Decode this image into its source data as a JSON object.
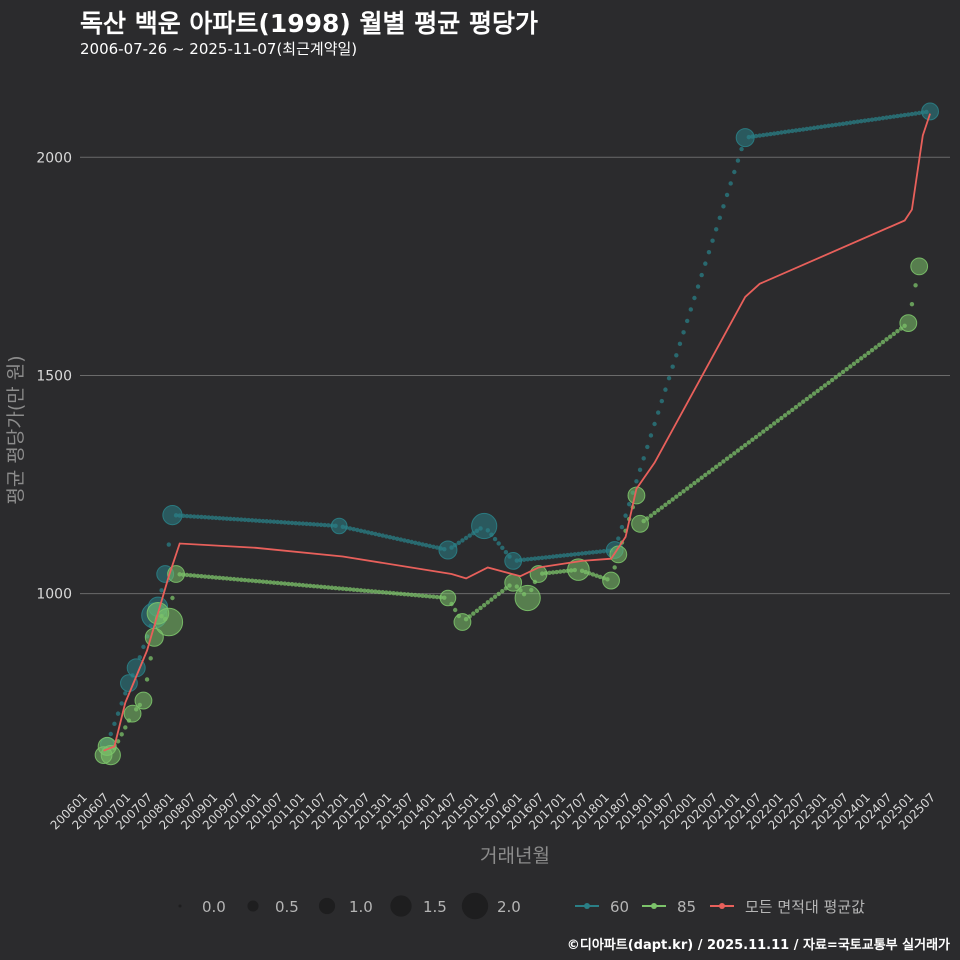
{
  "header": {
    "title": "독산 백운 아파트(1998) 월별 평균 평당가",
    "subtitle": "2006-07-26 ~ 2025-11-07(최근계약일)"
  },
  "footer": {
    "credit": "©디아파트(dapt.kr) / 2025.11.11 / 자료=국토교통부 실거래가"
  },
  "colors": {
    "background": "#2b2b2d",
    "s60": "#2a7f86",
    "s85": "#7cc36a",
    "avg": "#e8605b",
    "grid": "#6b6b6b"
  },
  "chart_data": {
    "type": "scatter",
    "title": "독산 백운 아파트(1998) 월별 평균 평당가",
    "xlabel": "거래년월",
    "ylabel": "평균 평당가(만 원)",
    "ylim": [
      550,
      2200
    ],
    "yticks": [
      1000,
      1500,
      2000
    ],
    "xlim": [
      "2006-01",
      "2025-12"
    ],
    "xticks": [
      "200601",
      "200607",
      "200701",
      "200707",
      "200801",
      "200807",
      "200901",
      "200907",
      "201001",
      "201007",
      "201101",
      "201107",
      "201201",
      "201207",
      "201301",
      "201307",
      "201401",
      "201407",
      "201501",
      "201507",
      "201601",
      "201607",
      "201701",
      "201707",
      "201801",
      "201807",
      "201901",
      "201907",
      "202001",
      "202007",
      "202101",
      "202107",
      "202201",
      "202207",
      "202301",
      "202307",
      "202401",
      "202407",
      "202501",
      "202507"
    ],
    "series": [
      {
        "name": "60",
        "points": [
          {
            "x": "2006-08",
            "y": 655,
            "size": 0.6
          },
          {
            "x": "2007-02",
            "y": 795,
            "size": 0.9
          },
          {
            "x": "2007-04",
            "y": 830,
            "size": 1.0
          },
          {
            "x": "2007-09",
            "y": 950,
            "size": 1.6
          },
          {
            "x": "2007-10",
            "y": 970,
            "size": 1.1
          },
          {
            "x": "2007-12",
            "y": 1045,
            "size": 0.9
          },
          {
            "x": "2008-02",
            "y": 1180,
            "size": 1.1
          },
          {
            "x": "2011-12",
            "y": 1155,
            "size": 0.8
          },
          {
            "x": "2014-06",
            "y": 1100,
            "size": 1.0
          },
          {
            "x": "2015-04",
            "y": 1155,
            "size": 1.6
          },
          {
            "x": "2015-12",
            "y": 1075,
            "size": 0.9
          },
          {
            "x": "2018-04",
            "y": 1100,
            "size": 0.9
          },
          {
            "x": "2021-04",
            "y": 2045,
            "size": 1.0
          },
          {
            "x": "2025-07",
            "y": 2105,
            "size": 0.9
          }
        ]
      },
      {
        "name": "85",
        "points": [
          {
            "x": "2006-07",
            "y": 630,
            "size": 0.9
          },
          {
            "x": "2006-08",
            "y": 650,
            "size": 1.0
          },
          {
            "x": "2006-09",
            "y": 630,
            "size": 1.1
          },
          {
            "x": "2007-03",
            "y": 725,
            "size": 0.9
          },
          {
            "x": "2007-06",
            "y": 755,
            "size": 0.9
          },
          {
            "x": "2007-09",
            "y": 900,
            "size": 1.0
          },
          {
            "x": "2007-10",
            "y": 955,
            "size": 1.3
          },
          {
            "x": "2008-01",
            "y": 935,
            "size": 1.8
          },
          {
            "x": "2008-03",
            "y": 1045,
            "size": 0.9
          },
          {
            "x": "2014-06",
            "y": 990,
            "size": 0.8
          },
          {
            "x": "2014-10",
            "y": 935,
            "size": 0.9
          },
          {
            "x": "2015-12",
            "y": 1025,
            "size": 0.9
          },
          {
            "x": "2016-04",
            "y": 990,
            "size": 1.6
          },
          {
            "x": "2016-07",
            "y": 1045,
            "size": 0.9
          },
          {
            "x": "2017-06",
            "y": 1055,
            "size": 1.3
          },
          {
            "x": "2018-03",
            "y": 1030,
            "size": 0.9
          },
          {
            "x": "2018-05",
            "y": 1090,
            "size": 0.9
          },
          {
            "x": "2018-10",
            "y": 1225,
            "size": 0.9
          },
          {
            "x": "2018-11",
            "y": 1160,
            "size": 0.9
          },
          {
            "x": "2025-01",
            "y": 1620,
            "size": 0.9
          },
          {
            "x": "2025-04",
            "y": 1750,
            "size": 0.9
          }
        ]
      },
      {
        "name": "모든 면적대 평균값",
        "type": "line",
        "points": [
          {
            "x": "2006-07",
            "y": 640
          },
          {
            "x": "2006-10",
            "y": 650
          },
          {
            "x": "2007-01",
            "y": 750
          },
          {
            "x": "2007-07",
            "y": 870
          },
          {
            "x": "2008-01",
            "y": 1040
          },
          {
            "x": "2008-04",
            "y": 1115
          },
          {
            "x": "2010-01",
            "y": 1105
          },
          {
            "x": "2012-01",
            "y": 1085
          },
          {
            "x": "2014-07",
            "y": 1045
          },
          {
            "x": "2014-11",
            "y": 1035
          },
          {
            "x": "2015-05",
            "y": 1060
          },
          {
            "x": "2016-02",
            "y": 1040
          },
          {
            "x": "2016-07",
            "y": 1060
          },
          {
            "x": "2017-07",
            "y": 1075
          },
          {
            "x": "2018-03",
            "y": 1080
          },
          {
            "x": "2018-07",
            "y": 1130
          },
          {
            "x": "2018-10",
            "y": 1240
          },
          {
            "x": "2019-03",
            "y": 1300
          },
          {
            "x": "2021-04",
            "y": 1680
          },
          {
            "x": "2021-08",
            "y": 1710
          },
          {
            "x": "2024-12",
            "y": 1855
          },
          {
            "x": "2025-02",
            "y": 1880
          },
          {
            "x": "2025-05",
            "y": 2050
          },
          {
            "x": "2025-07",
            "y": 2100
          }
        ]
      }
    ],
    "size_legend": {
      "values": [
        0.0,
        0.5,
        1.0,
        1.5,
        2.0
      ],
      "labels": [
        "0.0",
        "0.5",
        "1.0",
        "1.5",
        "2.0"
      ]
    },
    "legend": [
      "60",
      "85",
      "모든 면적대 평균값"
    ],
    "legend_position": "bottom"
  }
}
